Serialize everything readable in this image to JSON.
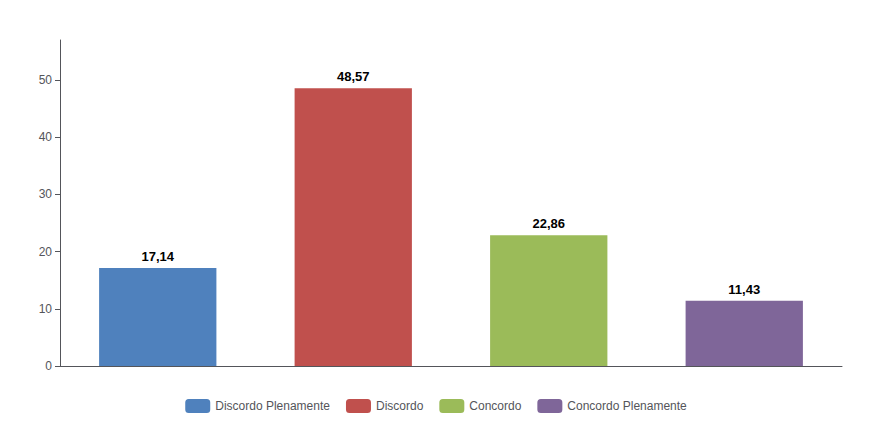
{
  "chart_data": {
    "type": "bar",
    "categories": [
      "Discordo Plenamente",
      "Discordo",
      "Concordo",
      "Concordo Plenamente"
    ],
    "values": [
      17.14,
      48.57,
      22.86,
      11.43
    ],
    "value_labels": [
      "17,14",
      "48,57",
      "22,86",
      "11,43"
    ],
    "colors": [
      "#4f81bd",
      "#c0504d",
      "#9bbb59",
      "#7f6699"
    ],
    "ylim": [
      0,
      57
    ],
    "yticks": [
      0,
      10,
      20,
      30,
      40,
      50
    ],
    "grid": false,
    "legend": "bottom",
    "data_labels": true,
    "tick_labels": "y"
  }
}
